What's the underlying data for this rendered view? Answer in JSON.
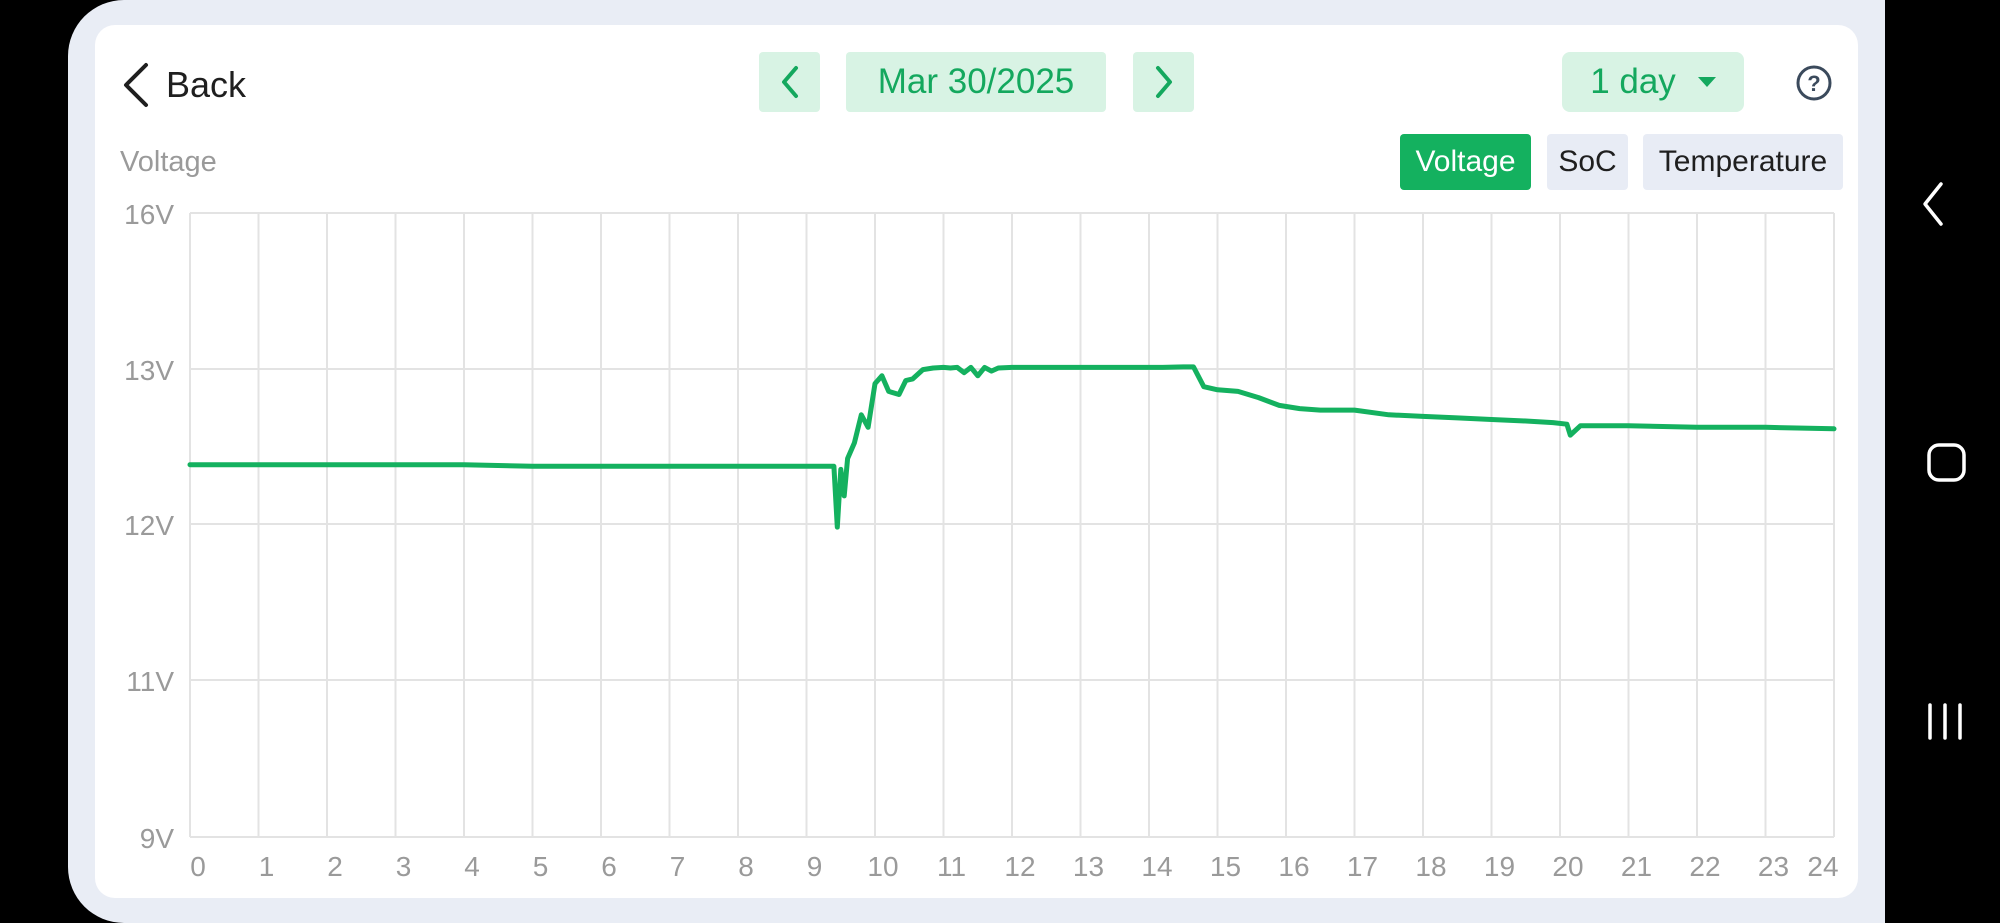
{
  "header": {
    "back_label": "Back",
    "date_label": "Mar 30/2025",
    "range_label": "1 day"
  },
  "chart_title": "Voltage",
  "tabs": [
    {
      "label": "Voltage",
      "active": true
    },
    {
      "label": "SoC",
      "active": false
    },
    {
      "label": "Temperature",
      "active": false
    }
  ],
  "icons": {
    "back": "chevron-left-icon",
    "prev": "chevron-left-icon",
    "next": "chevron-right-icon",
    "range": "caret-down-icon",
    "help": "question-circle-icon",
    "system_back": "chevron-left-icon",
    "system_home": "home-square-icon",
    "system_recents": "recents-bars-icon"
  },
  "colors": {
    "accent": "#14b15f",
    "accent_light": "#d8f3e4",
    "grid": "#e3e3e3",
    "tick_label": "#9a9a9a"
  },
  "chart_data": {
    "type": "line",
    "title": "Voltage",
    "xlabel": "",
    "ylabel": "",
    "x_ticks": [
      "0",
      "1",
      "2",
      "3",
      "4",
      "5",
      "6",
      "7",
      "8",
      "9",
      "10",
      "11",
      "12",
      "13",
      "14",
      "15",
      "16",
      "17",
      "18",
      "19",
      "20",
      "21",
      "22",
      "23",
      "24"
    ],
    "y_ticks": [
      "16V",
      "13V",
      "12V",
      "11V",
      "9V"
    ],
    "xlim": [
      0,
      24
    ],
    "grid": true,
    "legend": "none",
    "series": [
      {
        "color": "#14b15f",
        "x": [
          0,
          1,
          2,
          3,
          4,
          5,
          6,
          7,
          8,
          9,
          9.4,
          9.45,
          9.5,
          9.55,
          9.6,
          9.7,
          9.8,
          9.9,
          10.0,
          10.1,
          10.2,
          10.35,
          10.45,
          10.55,
          10.7,
          10.85,
          11.0,
          11.1,
          11.2,
          11.3,
          11.4,
          11.5,
          11.6,
          11.7,
          11.8,
          12.0,
          12.5,
          13.0,
          13.5,
          14.0,
          14.2,
          14.5,
          14.65,
          14.8,
          15.0,
          15.3,
          15.6,
          15.9,
          16.2,
          16.5,
          17.0,
          17.5,
          18.0,
          18.5,
          19.0,
          19.5,
          19.9,
          20.1,
          20.15,
          20.3,
          21.0,
          22.0,
          23.0,
          24.0
        ],
        "y": [
          12.38,
          12.38,
          12.38,
          12.38,
          12.38,
          12.37,
          12.37,
          12.37,
          12.37,
          12.37,
          12.37,
          11.98,
          12.35,
          12.18,
          12.42,
          12.52,
          12.7,
          12.62,
          12.9,
          12.95,
          12.85,
          12.83,
          12.92,
          12.93,
          12.99,
          13.02,
          13.03,
          13.02,
          13.03,
          12.97,
          13.03,
          12.95,
          13.03,
          12.98,
          13.02,
          13.03,
          13.03,
          13.03,
          13.03,
          13.03,
          13.03,
          13.04,
          13.04,
          12.88,
          12.86,
          12.85,
          12.81,
          12.76,
          12.74,
          12.73,
          12.73,
          12.7,
          12.69,
          12.68,
          12.67,
          12.66,
          12.65,
          12.64,
          12.57,
          12.63,
          12.63,
          12.62,
          12.62,
          12.61
        ]
      }
    ]
  }
}
